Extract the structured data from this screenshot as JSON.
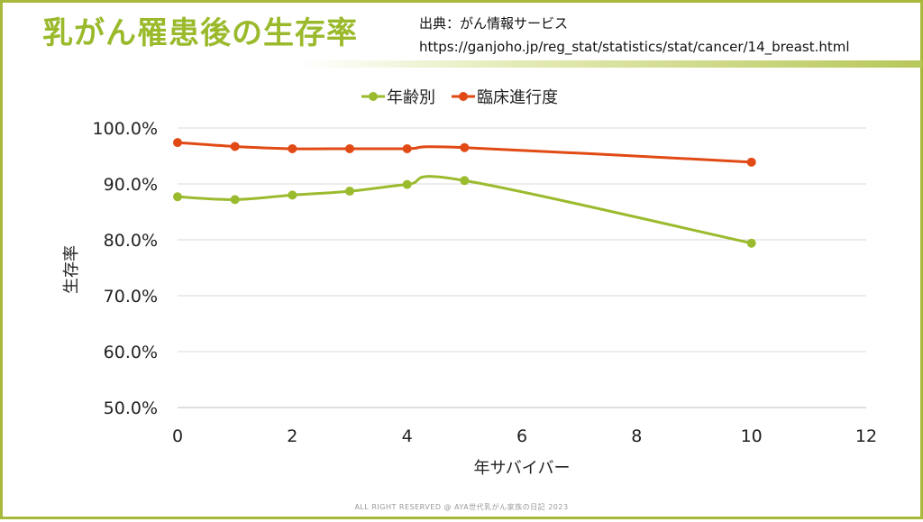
{
  "header": {
    "title": "乳がん罹患後の生存率",
    "source_line1": "出典：がん情報サービス",
    "source_line2": "https://ganjoho.jp/reg_stat/statistics/stat/cancer/14_breast.html"
  },
  "footer": {
    "text": "ALL RIGHT RESERVED @ AYA世代乳がん家族の日記 2023"
  },
  "colors": {
    "age": "#9bbb2e",
    "stage": "#e14a14",
    "frame": "#a8b83a",
    "title": "#9aba2c"
  },
  "chart_data": {
    "type": "line",
    "xlabel": "年サバイバー",
    "ylabel": "生存率",
    "xlim": [
      0,
      12
    ],
    "ylim": [
      50,
      100
    ],
    "x_ticks": [
      "0",
      "2",
      "4",
      "6",
      "8",
      "10",
      "12"
    ],
    "y_ticks": [
      "50.0%",
      "60.0%",
      "70.0%",
      "80.0%",
      "90.0%",
      "100.0%"
    ],
    "grid": true,
    "legend_position": "top",
    "series": [
      {
        "name": "年齢別",
        "color": "#9bbb2e",
        "points": [
          [
            0,
            87.7
          ],
          [
            1,
            87.2
          ],
          [
            2,
            88.0
          ],
          [
            3,
            88.7
          ],
          [
            4,
            89.9
          ],
          [
            5,
            90.6
          ],
          [
            10,
            79.4
          ]
        ]
      },
      {
        "name": "臨床進行度",
        "color": "#e14a14",
        "points": [
          [
            0,
            97.4
          ],
          [
            1,
            96.7
          ],
          [
            2,
            96.3
          ],
          [
            3,
            96.3
          ],
          [
            4,
            96.3
          ],
          [
            5,
            96.5
          ],
          [
            10,
            93.9
          ]
        ]
      }
    ]
  }
}
